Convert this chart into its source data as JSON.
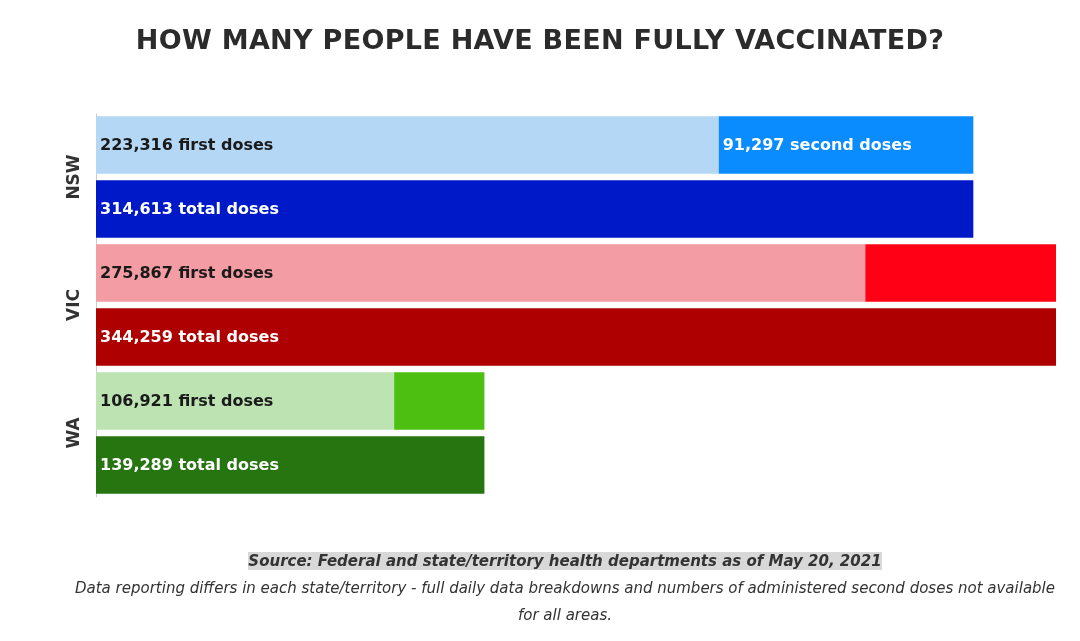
{
  "chart_data": {
    "type": "bar",
    "orientation": "horizontal",
    "stacked": true,
    "tick_labels": "y",
    "title": "HOW MANY PEOPLE HAVE BEEN FULLY VACCINATED?",
    "categories": [
      "NSW",
      null,
      "VIC",
      null,
      "WA",
      null
    ],
    "series": [
      {
        "colors": [
          "#b3d7f5",
          null,
          "#f49ca3",
          null,
          "#bde3b3",
          null
        ],
        "values": [
          223316,
          null,
          275867,
          null,
          106921,
          null
        ],
        "value_labels": [
          "223,316 first doses",
          null,
          "275,867 first doses",
          null,
          "106,921 first doses",
          null
        ]
      },
      {
        "colors": [
          "#0a8cff",
          null,
          "#ff0015",
          null,
          "#4cbf10",
          null
        ],
        "values": [
          91297,
          null,
          68392,
          null,
          32368,
          null
        ],
        "value_labels": [
          "91,297 second doses",
          null,
          null,
          null,
          null,
          null
        ]
      },
      {
        "colors": [
          null,
          "#0019c8",
          null,
          "#ae0000",
          null,
          "#267510"
        ],
        "values": [
          null,
          314613,
          null,
          344259,
          null,
          139289
        ],
        "value_labels": [
          null,
          "314,613 total doses",
          null,
          "344,259 total doses",
          null,
          "139,289 total doses"
        ]
      }
    ],
    "annotations": [
      "Source: Federal and state/territory health departments as of May 20, 2021",
      "Data reporting differs in each state/territory - full daily data breakdowns and numbers of administered second doses not available for all areas."
    ]
  }
}
